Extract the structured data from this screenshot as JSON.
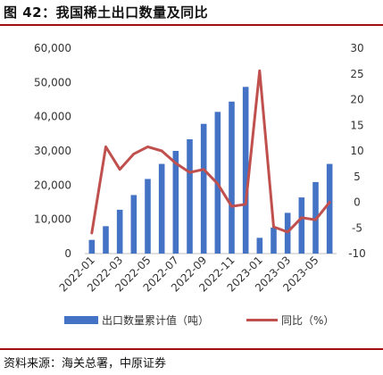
{
  "header": {
    "title": "图 42：我国稀土出口数量及同比"
  },
  "footer": {
    "source": "资料来源：海关总署，中原证券"
  },
  "chart_data": {
    "type": "bar+line",
    "title": "",
    "x": [
      "2022-01",
      "2022-02",
      "2022-03",
      "2022-04",
      "2022-05",
      "2022-06",
      "2022-07",
      "2022-08",
      "2022-09",
      "2022-10",
      "2022-11",
      "2022-12",
      "2023-01",
      "2023-02",
      "2023-03",
      "2023-04",
      "2023-05",
      "2023-06"
    ],
    "x_tick_labels": [
      "2022-01",
      "2022-03",
      "2022-05",
      "2022-07",
      "2022-09",
      "2022-11",
      "2023-01",
      "2023-03",
      "2023-05"
    ],
    "y_left": {
      "ticks": [
        "0",
        "10,000",
        "20,000",
        "30,000",
        "40,000",
        "50,000",
        "60,000"
      ],
      "ylim": [
        0,
        60000
      ]
    },
    "y_right": {
      "ticks": [
        "-10",
        "-5",
        "0",
        "5",
        "10",
        "15",
        "20",
        "25",
        "30"
      ],
      "ylim": [
        -10,
        30
      ]
    },
    "series": [
      {
        "name": "出口数量累计值（吨）",
        "type": "bar",
        "axis": "left",
        "color": "#4472c4",
        "values": [
          4000,
          8000,
          12800,
          17100,
          21800,
          26200,
          30000,
          33400,
          37900,
          41400,
          44400,
          48700,
          4600,
          7600,
          11900,
          16400,
          20900,
          26200
        ]
      },
      {
        "name": "同比（%）",
        "type": "line",
        "axis": "right",
        "color": "#c0504d",
        "values": [
          -6.0,
          10.8,
          6.4,
          9.4,
          10.8,
          10.0,
          7.6,
          5.8,
          6.4,
          3.6,
          -0.8,
          -0.4,
          25.6,
          -4.8,
          -5.8,
          -3.0,
          -3.4,
          0.0
        ]
      }
    ],
    "legend": {
      "position": "bottom"
    },
    "grid": false
  }
}
